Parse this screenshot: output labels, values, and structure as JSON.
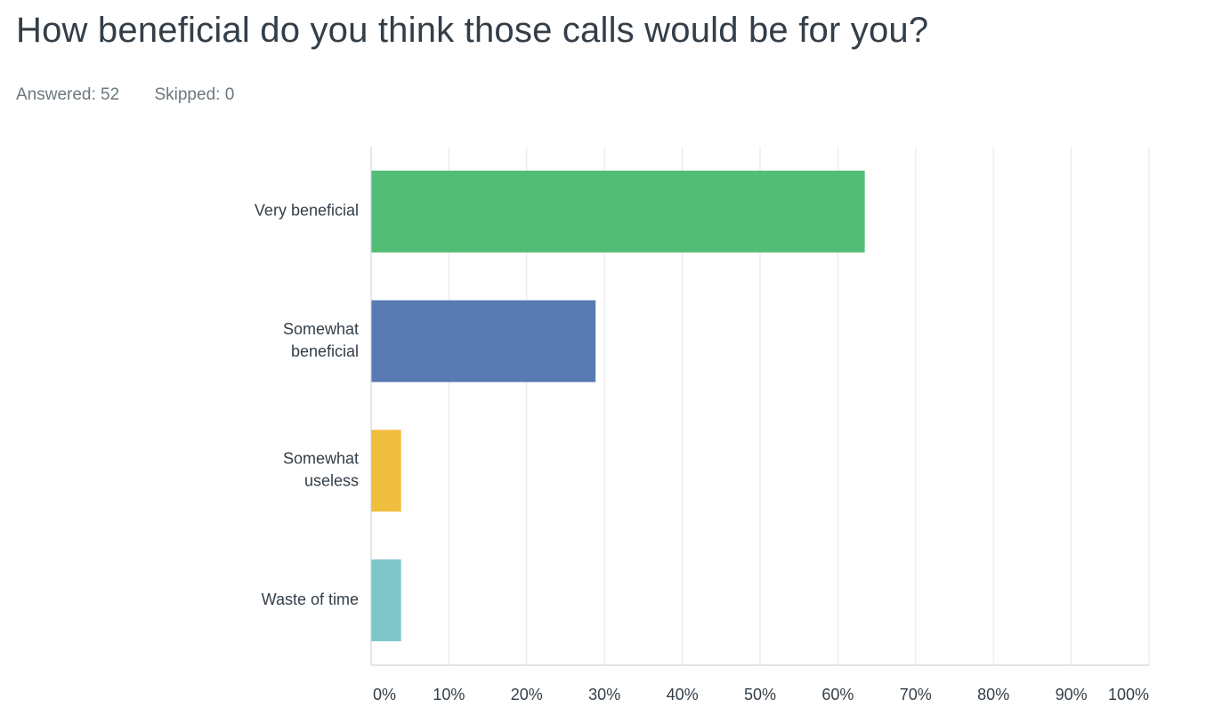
{
  "question": {
    "title": "How beneficial do you think those calls would be for you?",
    "answered": "Answered: 52",
    "skipped": "Skipped: 0"
  },
  "chart_data": {
    "type": "bar",
    "orientation": "horizontal",
    "categories": [
      [
        "Very beneficial"
      ],
      [
        "Somewhat",
        "beneficial"
      ],
      [
        "Somewhat",
        "useless"
      ],
      [
        "Waste of time"
      ]
    ],
    "values": [
      63.46,
      28.85,
      3.85,
      3.85
    ],
    "colors": [
      "#53bd77",
      "#577bb2",
      "#f0be3f",
      "#7fc6cb"
    ],
    "xlim": [
      0,
      100
    ],
    "xticks": [
      "0%",
      "10%",
      "20%",
      "30%",
      "40%",
      "50%",
      "60%",
      "70%",
      "80%",
      "90%",
      "100%"
    ],
    "grid": true
  }
}
